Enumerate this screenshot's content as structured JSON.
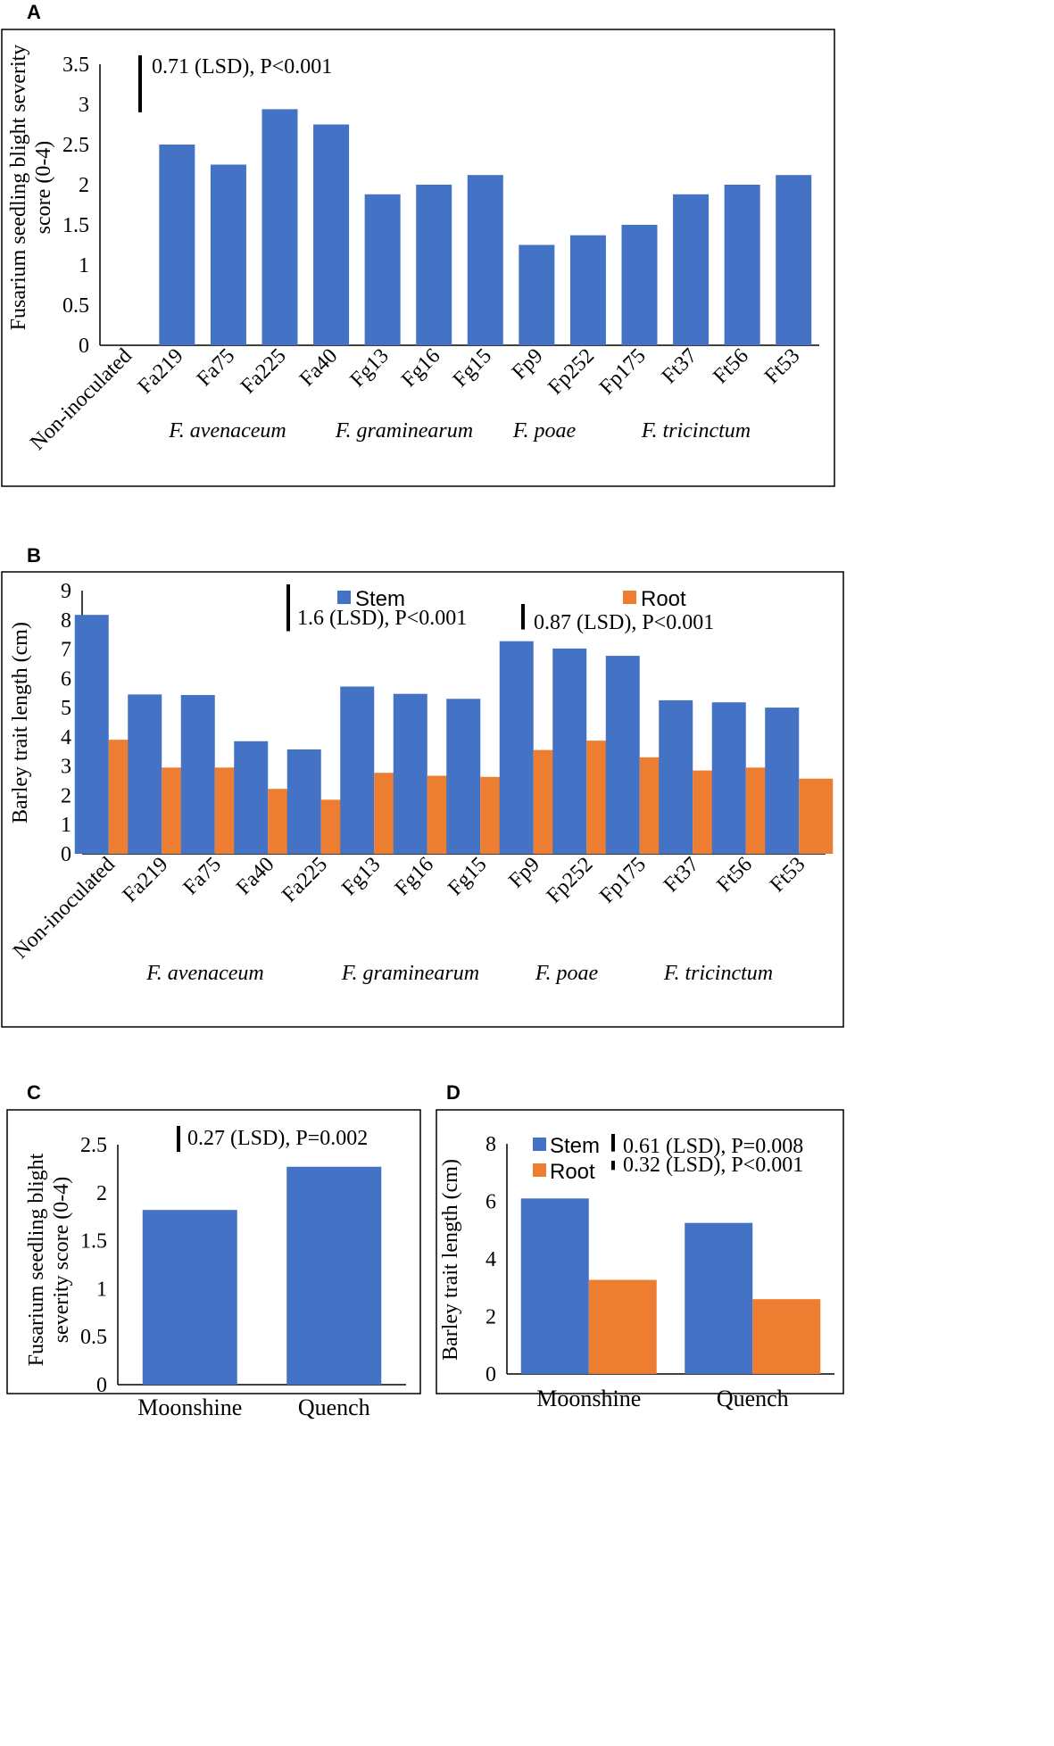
{
  "colors": {
    "stem": "#4472C4",
    "root": "#ED7D31"
  },
  "panels": [
    {
      "letter": "A",
      "species_groups": [
        "F. avenaceum",
        "F. graminearum",
        "F. poae",
        "F. tricinctum"
      ],
      "chart_data": {
        "type": "bar",
        "ylabel": "Fusarium seedling blight severity score (0-4)",
        "ylabel_lines": [
          "Fusarium seedling blight severity",
          "score (0-4)"
        ],
        "ylim": [
          0,
          3.5
        ],
        "yticks": [
          "0",
          "0.5",
          "1",
          "1.5",
          "2",
          "2.5",
          "3",
          "3.5"
        ],
        "categories": [
          "Non-inoculated",
          "Fa219",
          "Fa75",
          "Fa225",
          "Fa40",
          "Fg13",
          "Fg16",
          "Fg15",
          "Fp9",
          "Fp252",
          "Fp175",
          "Ft37",
          "Ft56",
          "Ft53"
        ],
        "series": [
          {
            "name": "Severity",
            "values": [
              0,
              2.5,
              2.25,
              2.94,
              2.75,
              1.88,
              2.0,
              2.12,
              1.25,
              1.37,
              1.5,
              1.88,
              2.0,
              2.12
            ]
          }
        ],
        "annotations": [
          {
            "text": "0.71 (LSD), P<0.001",
            "lsd": 0.71
          }
        ]
      }
    },
    {
      "letter": "B",
      "species_groups": [
        "F. avenaceum",
        "F. graminearum",
        "F. poae",
        "F. tricinctum"
      ],
      "chart_data": {
        "type": "bar",
        "ylabel": "Barley trait length (cm)",
        "ylabel_lines": [
          "Barley trait length (cm)"
        ],
        "ylim": [
          0,
          9
        ],
        "yticks": [
          "0",
          "1",
          "2",
          "3",
          "4",
          "5",
          "6",
          "7",
          "8",
          "9"
        ],
        "categories": [
          "Non-inoculated",
          "Fa219",
          "Fa75",
          "Fa40",
          "Fa225",
          "Fg13",
          "Fg16",
          "Fg15",
          "Fp9",
          "Fp252",
          "Fp175",
          "Ft37",
          "Ft56",
          "Ft53"
        ],
        "series": [
          {
            "name": "Stem",
            "values": [
              8.17,
              5.45,
              5.43,
              3.85,
              3.57,
              5.72,
              5.47,
              5.3,
              7.27,
              7.02,
              6.77,
              5.25,
              5.18,
              5.0
            ]
          },
          {
            "name": "Root",
            "values": [
              3.9,
              2.95,
              2.95,
              2.22,
              1.85,
              2.77,
              2.67,
              2.63,
              3.55,
              3.87,
              3.3,
              2.85,
              2.95,
              2.57
            ]
          }
        ],
        "legend": [
          "Stem",
          "Root"
        ],
        "annotations": [
          {
            "text": "1.6 (LSD), P<0.001",
            "lsd": 1.6
          },
          {
            "text": "0.87 (LSD), P<0.001",
            "lsd": 0.87
          }
        ]
      }
    },
    {
      "letter": "C",
      "chart_data": {
        "type": "bar",
        "ylabel": "Fusarium seedling blight severity score (0-4)",
        "ylabel_lines": [
          "Fusarium seedling blight",
          "severity score (0-4)"
        ],
        "ylim": [
          0,
          2.5
        ],
        "yticks": [
          "0",
          "0.5",
          "1",
          "1.5",
          "2",
          "2.5"
        ],
        "categories": [
          "Moonshine",
          "Quench"
        ],
        "series": [
          {
            "name": "Severity",
            "values": [
              1.82,
              2.27
            ]
          }
        ],
        "annotations": [
          {
            "text": "0.27 (LSD), P=0.002",
            "lsd": 0.27
          }
        ]
      }
    },
    {
      "letter": "D",
      "chart_data": {
        "type": "bar",
        "ylabel": "Barley trait length (cm)",
        "ylabel_lines": [
          "Barley trait length (cm)"
        ],
        "ylim": [
          0,
          8
        ],
        "yticks": [
          "0",
          "2",
          "4",
          "6",
          "8"
        ],
        "categories": [
          "Moonshine",
          "Quench"
        ],
        "series": [
          {
            "name": "Stem",
            "values": [
              6.1,
              5.25
            ]
          },
          {
            "name": "Root",
            "values": [
              3.27,
              2.6
            ]
          }
        ],
        "legend": [
          "Stem",
          "Root"
        ],
        "annotations": [
          {
            "text": "0.61 (LSD), P=0.008",
            "lsd": 0.61
          },
          {
            "text": "0.32 (LSD), P<0.001",
            "lsd": 0.32
          }
        ]
      }
    }
  ]
}
